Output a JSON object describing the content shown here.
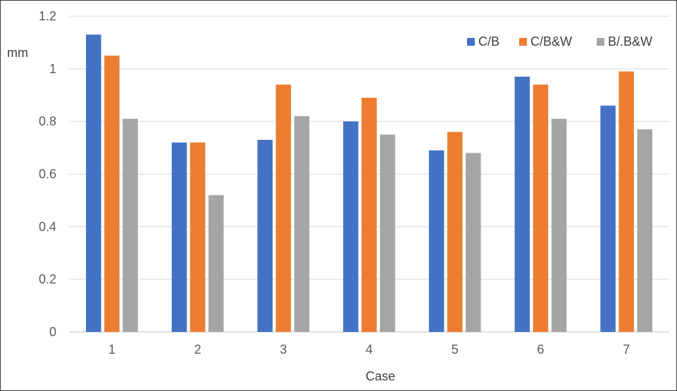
{
  "chart_data": {
    "type": "bar",
    "title": "",
    "xlabel": "Case",
    "ylabel": "mm",
    "categories": [
      "1",
      "2",
      "3",
      "4",
      "5",
      "6",
      "7"
    ],
    "ylim": [
      0,
      1.2
    ],
    "yticks": [
      "0",
      "0.2",
      "0.4",
      "0.6",
      "0.8",
      "1",
      "1.2"
    ],
    "grid": true,
    "legend_position": "top-right",
    "series": [
      {
        "name": "C/B",
        "color": "#4472C4",
        "values": [
          1.13,
          0.72,
          0.73,
          0.8,
          0.69,
          0.97,
          0.86
        ]
      },
      {
        "name": "C/B&W",
        "color": "#ED7D31",
        "values": [
          1.05,
          0.72,
          0.94,
          0.89,
          0.76,
          0.94,
          0.99
        ]
      },
      {
        "name": "B/.B&W",
        "color": "#A5A5A5",
        "values": [
          0.81,
          0.52,
          0.82,
          0.75,
          0.68,
          0.81,
          0.77
        ]
      }
    ]
  }
}
